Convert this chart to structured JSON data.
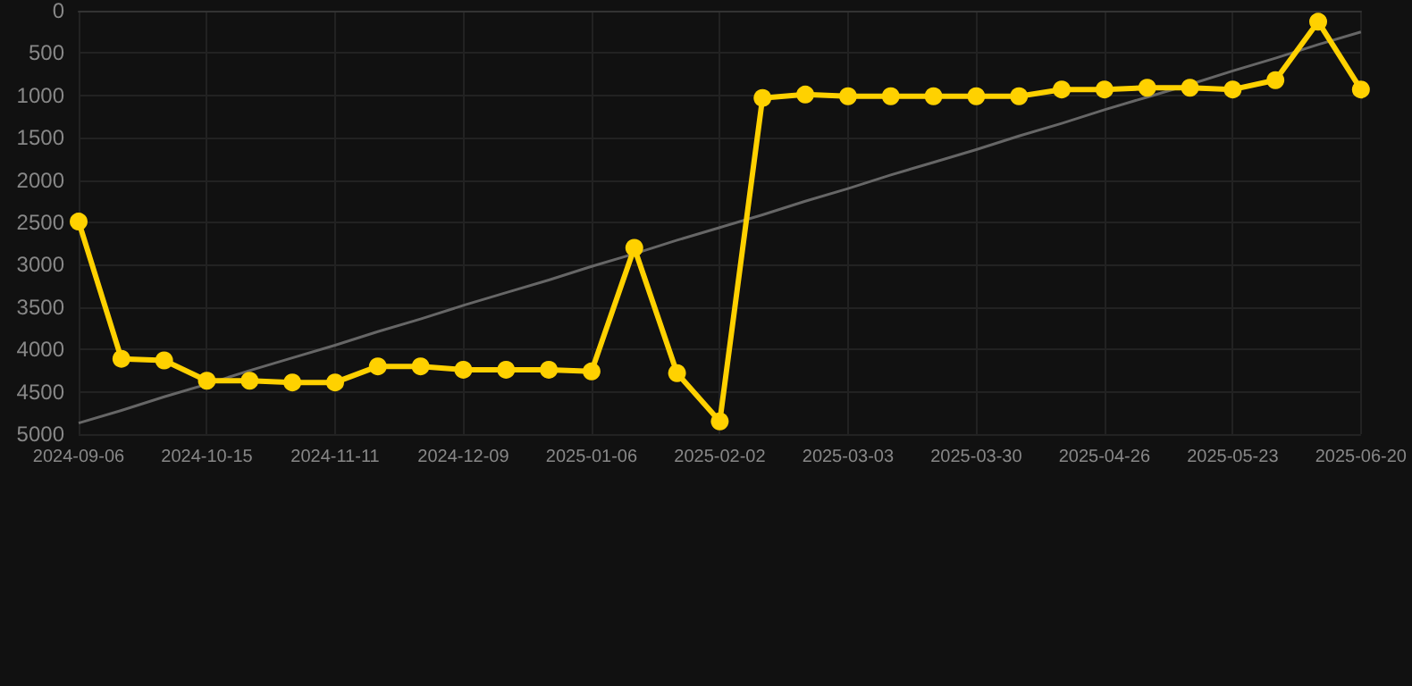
{
  "chart_data": {
    "type": "line",
    "categories": [
      "2024-09-06",
      null,
      null,
      "2024-10-15",
      null,
      null,
      "2024-11-11",
      null,
      null,
      "2024-12-09",
      null,
      null,
      "2025-01-06",
      null,
      null,
      "2025-02-02",
      null,
      null,
      "2025-03-03",
      null,
      null,
      "2025-03-30",
      null,
      null,
      "2025-04-26",
      null,
      null,
      "2025-05-23",
      null,
      null,
      "2025-06-20"
    ],
    "series": [
      {
        "color": "#ffd100",
        "values": [
          2490,
          4110,
          4130,
          4370,
          4370,
          4390,
          4390,
          4200,
          4200,
          4240,
          4240,
          4240,
          4260,
          2800,
          4280,
          4850,
          1030,
          990,
          1010,
          1010,
          1010,
          1010,
          1010,
          930,
          930,
          910,
          910,
          930,
          820,
          130,
          930
        ]
      },
      {
        "type": "line",
        "color": "#666666",
        "marker": "none",
        "values": [
          4870,
          4720,
          4560,
          4410,
          4250,
          4100,
          3950,
          3790,
          3640,
          3480,
          3330,
          3180,
          3020,
          2870,
          2710,
          2560,
          2410,
          2250,
          2100,
          1940,
          1790,
          1640,
          1480,
          1330,
          1170,
          1020,
          870,
          710,
          560,
          400,
          250
        ]
      }
    ],
    "ylim": [
      5000,
      0
    ],
    "yticks": [
      0,
      500,
      1000,
      1500,
      2000,
      2500,
      3000,
      3500,
      4000,
      4500,
      5000
    ],
    "grid": true,
    "marker": "circle",
    "line_style": "solid"
  }
}
